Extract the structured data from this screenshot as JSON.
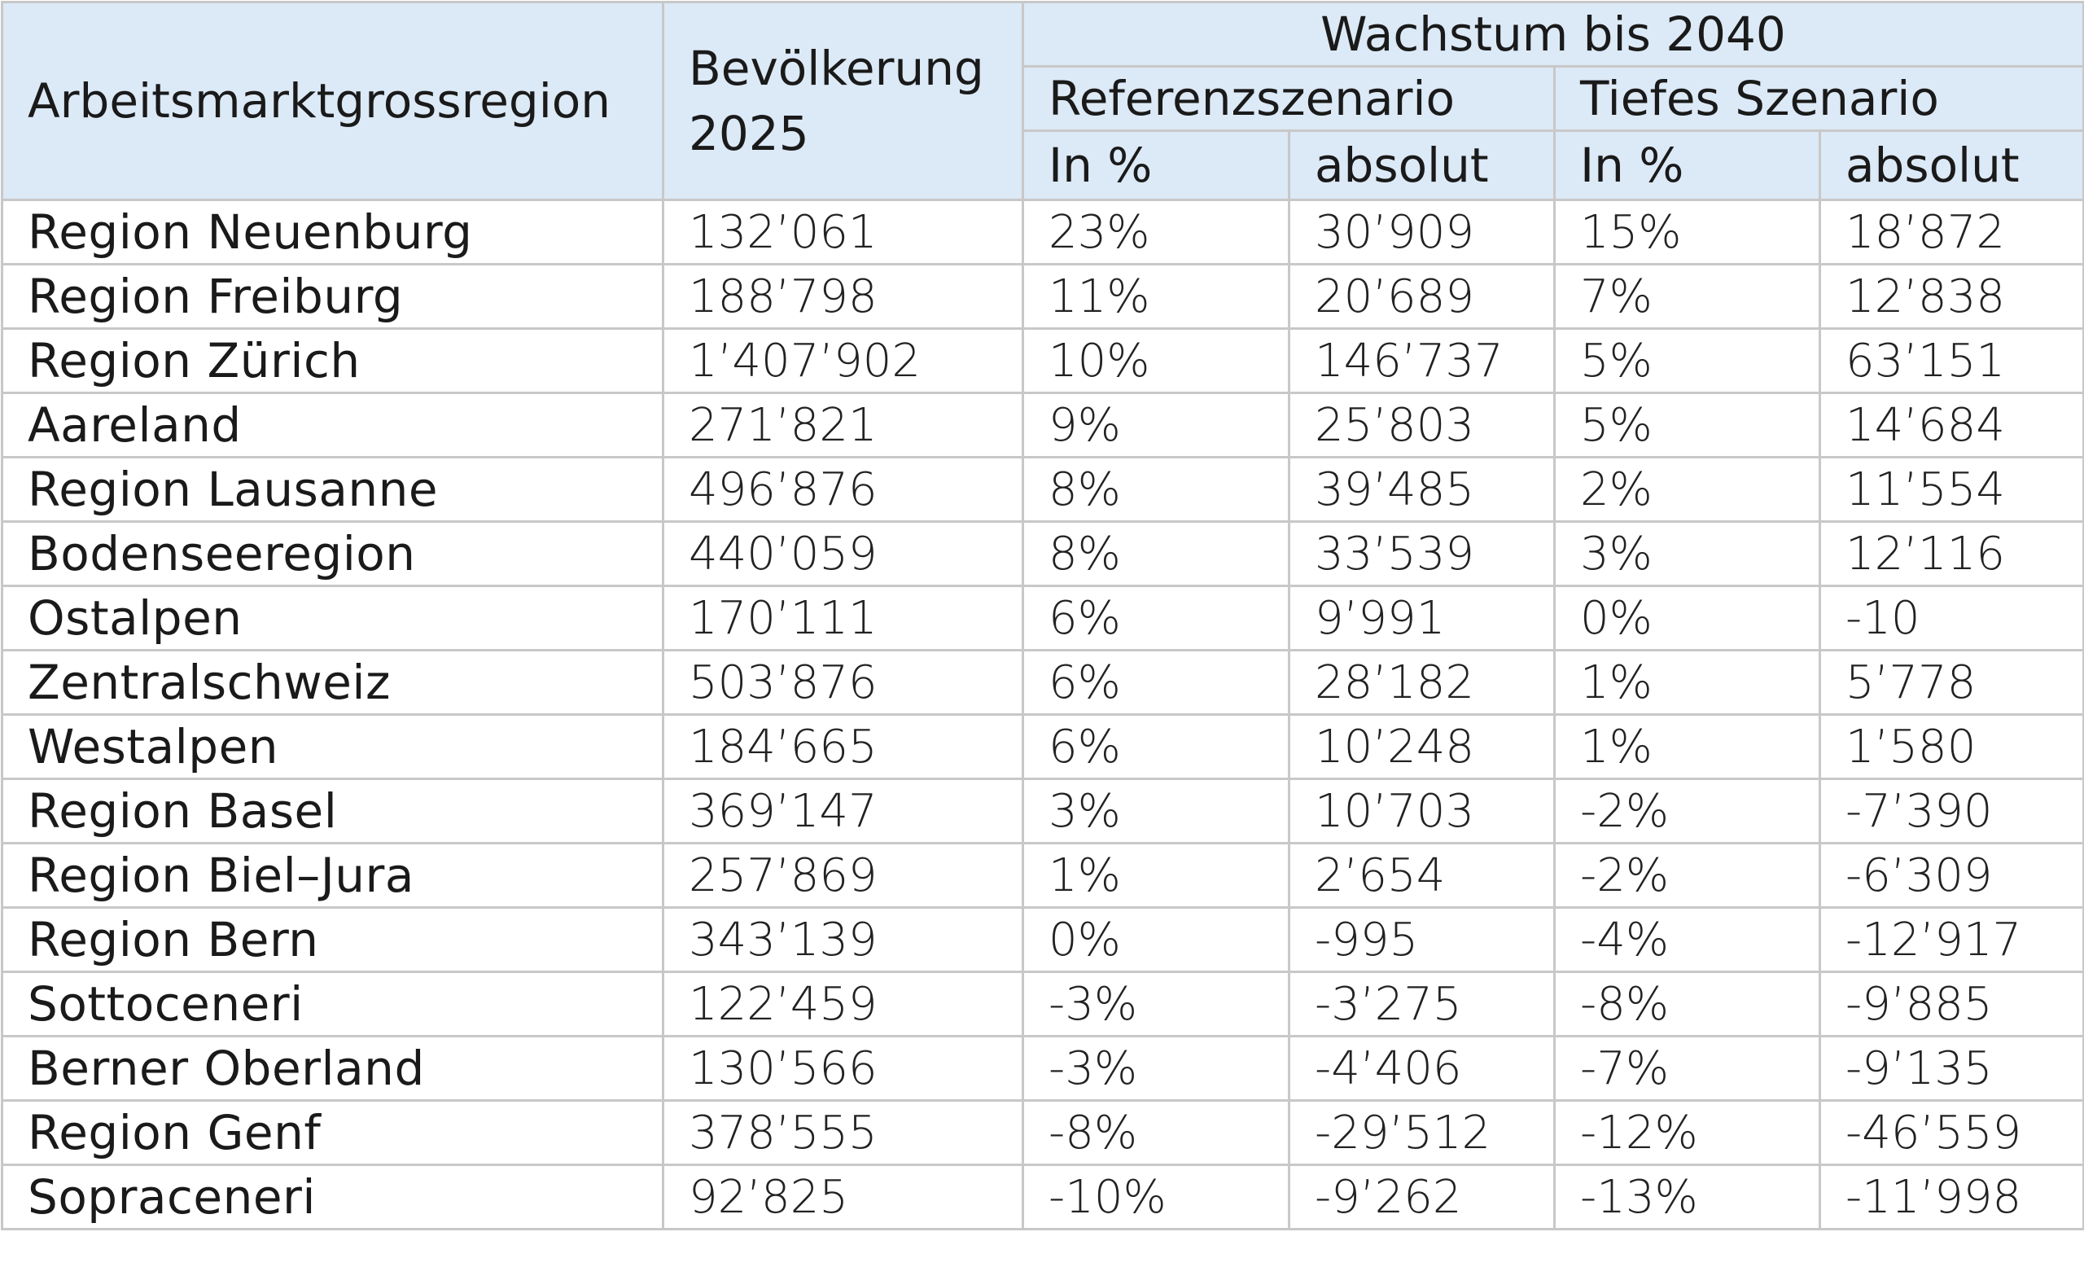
{
  "table": {
    "headers": {
      "region": "Arbeitsmarktgrossregion",
      "population": "Bevölkerung 2025",
      "growth_group": "Wachstum bis 2040",
      "scenario_reference": "Referenzszenario",
      "scenario_low": "Tiefes Szenario",
      "in_percent_ref": "In %",
      "absolute_ref": "absolut",
      "in_percent_low": "In %",
      "absolute_low": "absolut"
    },
    "rows": [
      {
        "region": "Region Neuenburg",
        "population": "132’061",
        "ref_pct": "23%",
        "ref_abs": "30’909",
        "low_pct": "15%",
        "low_abs": "18’872"
      },
      {
        "region": "Region Freiburg",
        "population": "188’798",
        "ref_pct": "11%",
        "ref_abs": "20’689",
        "low_pct": "7%",
        "low_abs": "12’838"
      },
      {
        "region": "Region Zürich",
        "population": "1’407’902",
        "ref_pct": "10%",
        "ref_abs": "146’737",
        "low_pct": "5%",
        "low_abs": "63’151"
      },
      {
        "region": "Aareland",
        "population": "271’821",
        "ref_pct": "9%",
        "ref_abs": "25’803",
        "low_pct": "5%",
        "low_abs": "14’684"
      },
      {
        "region": "Region Lausanne",
        "population": "496’876",
        "ref_pct": "8%",
        "ref_abs": "39’485",
        "low_pct": "2%",
        "low_abs": "11’554"
      },
      {
        "region": "Bodenseeregion",
        "population": "440’059",
        "ref_pct": "8%",
        "ref_abs": "33’539",
        "low_pct": "3%",
        "low_abs": "12’116"
      },
      {
        "region": "Ostalpen",
        "population": "170’111",
        "ref_pct": "6%",
        "ref_abs": "9’991",
        "low_pct": "0%",
        "low_abs": "-10"
      },
      {
        "region": "Zentralschweiz",
        "population": "503’876",
        "ref_pct": "6%",
        "ref_abs": "28’182",
        "low_pct": "1%",
        "low_abs": "5’778"
      },
      {
        "region": "Westalpen",
        "population": "184’665",
        "ref_pct": "6%",
        "ref_abs": "10’248",
        "low_pct": "1%",
        "low_abs": "1’580"
      },
      {
        "region": "Region Basel",
        "population": "369’147",
        "ref_pct": "3%",
        "ref_abs": "10’703",
        "low_pct": "-2%",
        "low_abs": "-7’390"
      },
      {
        "region": "Region Biel–Jura",
        "population": "257’869",
        "ref_pct": "1%",
        "ref_abs": "2’654",
        "low_pct": "-2%",
        "low_abs": "-6’309"
      },
      {
        "region": "Region Bern",
        "population": "343’139",
        "ref_pct": "0%",
        "ref_abs": "-995",
        "low_pct": "-4%",
        "low_abs": "-12’917"
      },
      {
        "region": "Sottoceneri",
        "population": "122’459",
        "ref_pct": "-3%",
        "ref_abs": "-3’275",
        "low_pct": "-8%",
        "low_abs": "-9’885"
      },
      {
        "region": "Berner Oberland",
        "population": "130’566",
        "ref_pct": "-3%",
        "ref_abs": "-4’406",
        "low_pct": "-7%",
        "low_abs": "-9’135"
      },
      {
        "region": "Region Genf",
        "population": "378’555",
        "ref_pct": "-8%",
        "ref_abs": "-29’512",
        "low_pct": "-12%",
        "low_abs": "-46’559"
      },
      {
        "region": "Sopraceneri",
        "population": "92’825",
        "ref_pct": "-10%",
        "ref_abs": "-9’262",
        "low_pct": "-13%",
        "low_abs": "-11’998"
      }
    ]
  },
  "colors": {
    "header_background": "#dce9f6",
    "grid_lines": "#c8c8c8",
    "text": "#1a1a1a"
  }
}
